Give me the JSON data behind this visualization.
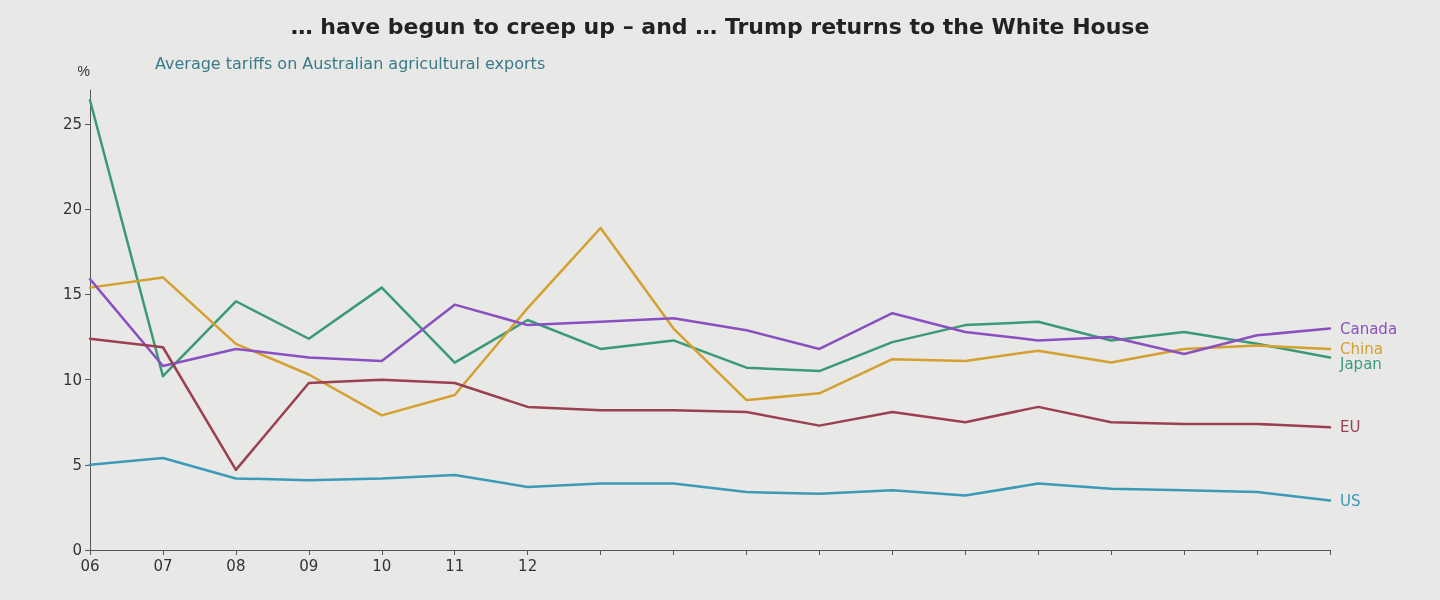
{
  "chart_data": {
    "type": "line",
    "title": "… have begun to creep up – and … Trump returns to the White House",
    "subtitle": "Average tariffs on Australian agricultural exports",
    "ylabel": "%",
    "categories": [
      "06",
      "07",
      "08",
      "09",
      "10",
      "11",
      "12",
      null,
      null,
      null,
      null,
      null,
      null,
      null,
      null,
      null,
      null,
      null
    ],
    "series": [
      {
        "name": "Japan",
        "color": "#3a9a78",
        "values": [
          26.4,
          10.2,
          14.6,
          12.4,
          15.4,
          11.0,
          13.5,
          11.8,
          12.3,
          10.7,
          10.5,
          12.2,
          13.2,
          13.4,
          12.3,
          12.8,
          12.1,
          11.3
        ]
      },
      {
        "name": "China",
        "color": "#d4a030",
        "values": [
          15.4,
          16.0,
          12.1,
          10.3,
          7.9,
          9.1,
          14.2,
          18.9,
          13.0,
          8.8,
          9.2,
          11.2,
          11.1,
          11.7,
          11.0,
          11.8,
          12.0,
          11.8
        ]
      },
      {
        "name": "Canada",
        "color": "#8a4fc0",
        "values": [
          15.9,
          10.8,
          11.8,
          11.3,
          11.1,
          14.4,
          13.2,
          13.4,
          13.6,
          12.9,
          11.8,
          13.9,
          12.8,
          12.3,
          12.5,
          11.5,
          12.6,
          13.0
        ]
      },
      {
        "name": "EU",
        "color": "#9a4050",
        "values": [
          12.4,
          11.9,
          4.7,
          9.8,
          10.0,
          9.8,
          8.4,
          8.2,
          8.2,
          8.1,
          7.3,
          8.1,
          7.5,
          8.4,
          7.5,
          7.4,
          7.4,
          7.2
        ]
      },
      {
        "name": "US",
        "color": "#3a9ab8",
        "values": [
          5.0,
          5.4,
          4.2,
          4.1,
          4.2,
          4.4,
          3.7,
          3.9,
          3.9,
          3.4,
          3.3,
          3.5,
          3.2,
          3.9,
          3.6,
          3.5,
          3.4,
          2.9
        ]
      }
    ],
    "ylim": [
      0,
      27
    ],
    "yticks": [
      0,
      5,
      10,
      15,
      20,
      25
    ],
    "grid": false,
    "legend": false,
    "marker": "none",
    "line_style": "solid"
  }
}
